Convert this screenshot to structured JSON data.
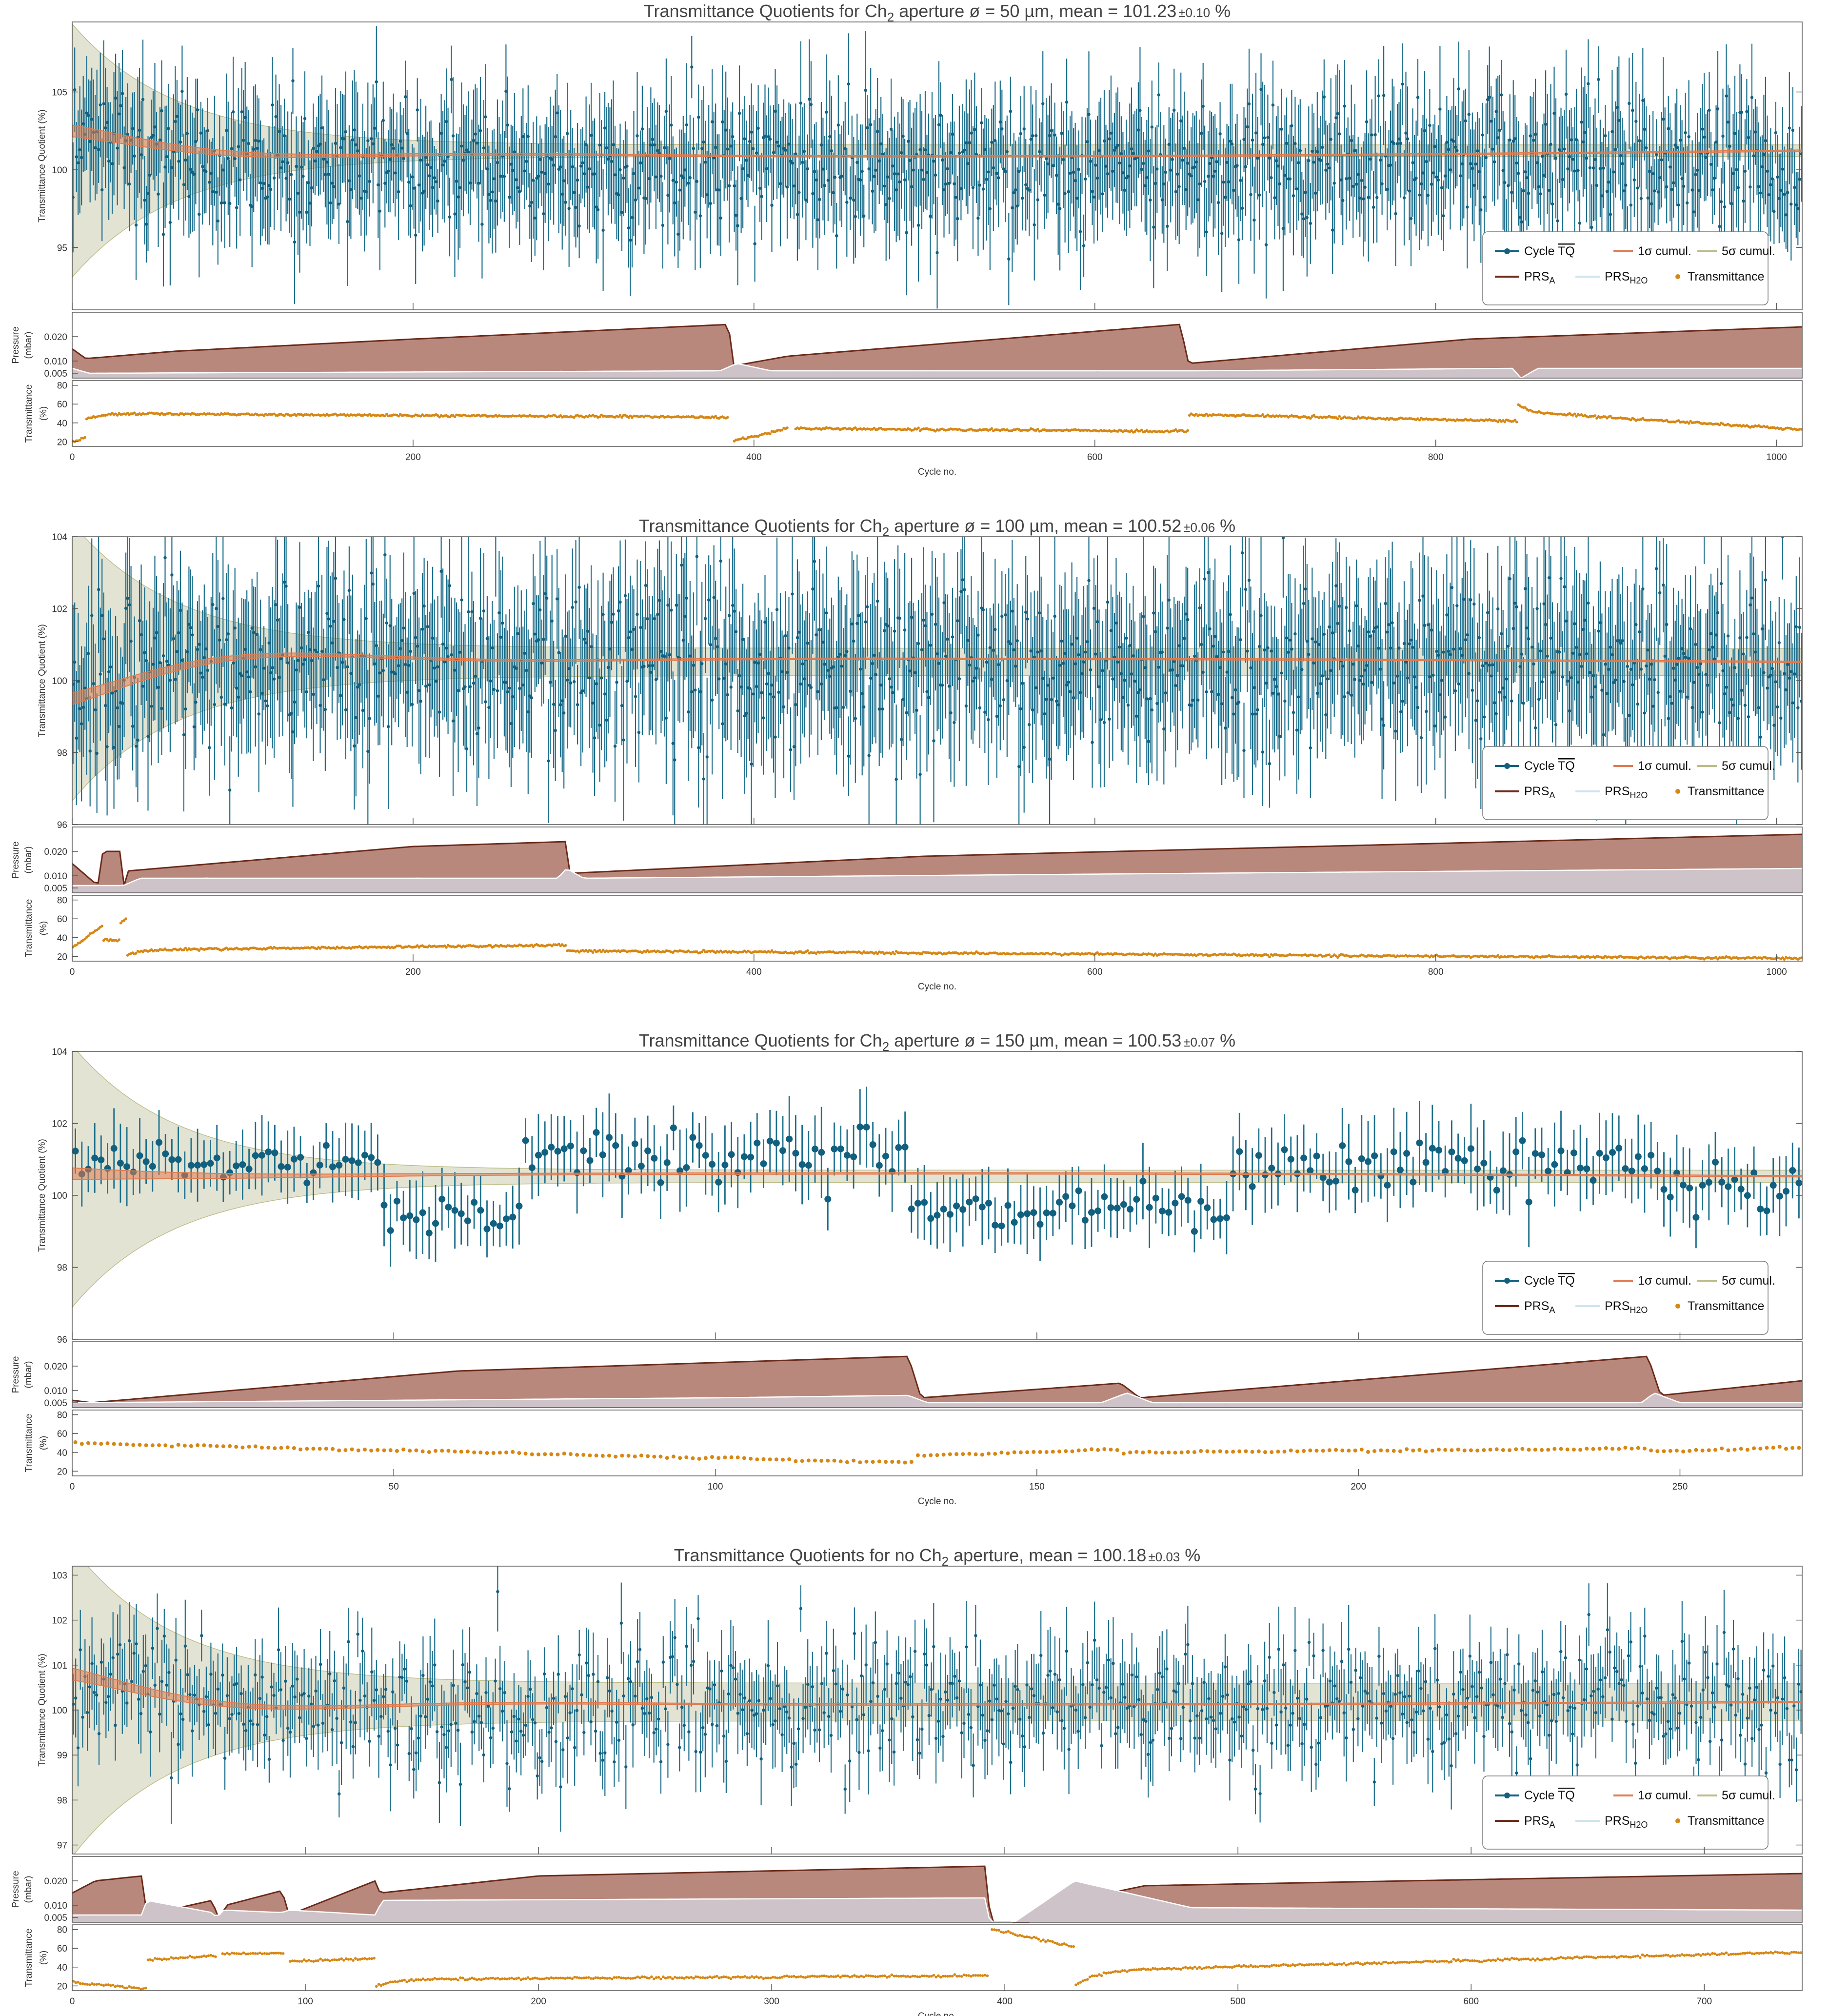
{
  "colors": {
    "tq": "#12607f",
    "tq_err": "#1d6f8c",
    "cum1": "#e07b4f",
    "cum5": "#bdbc88",
    "band5": "#dad9c6",
    "prs_a_line": "#6b2a1a",
    "prs_a_fill": "#b9887c",
    "prs_h2o_fill": "#cdc3c8",
    "prs_h2o_line": "#ffffff",
    "trans": "#d68714"
  },
  "legend": {
    "cycle_prefix": "Cycle",
    "cycle_symbol": "TQ",
    "cum1_label": "1σ cumul.",
    "cum5_label": "5σ cumul.",
    "prs_a_main": "PRS",
    "prs_a_sub": "A",
    "prs_h2o_main": "PRS",
    "prs_h2o_sub": "H2O",
    "trans_label": "Transmittance"
  },
  "axes": {
    "tq_ylabel": "Transmittance Quotient (%)",
    "prs_ylabel1": "Pressure",
    "prs_ylabel2": "(mbar)",
    "tr_ylabel1": "Transmittance",
    "tr_ylabel2": "(%)",
    "xlabel": "Cycle no."
  },
  "chart_data": [
    {
      "type": "scatter",
      "title_pre": "Transmittance Quotients for Ch",
      "title_sub": "2",
      "title_post": " aperture ø = 50 µm, mean = 101.23",
      "title_pm": "±0.10",
      "title_unit": " %",
      "n_cycles": 1015,
      "xlim": [
        0,
        1015
      ],
      "xticks": [
        0,
        200,
        400,
        600,
        800,
        1000
      ],
      "tq": {
        "ylim": [
          91,
          109.5
        ],
        "yticks": [
          95,
          100,
          105
        ],
        "mean": 101.23,
        "pattern": "dense-noisy",
        "segments": [
          {
            "from": 0,
            "to": 1015,
            "mean": 100.4,
            "spread": 2.2,
            "err": 3.6
          }
        ],
        "cum_start": 102.5,
        "cum_dip": 100.0,
        "band5_start": 109,
        "band5_end": 101.6
      },
      "pressure": {
        "ylim": [
          0.003,
          0.03
        ],
        "yticks": [
          0.005,
          0.01,
          0.02
        ],
        "prs_a": [
          [
            0,
            0.015
          ],
          [
            8,
            0.011
          ],
          [
            60,
            0.014
          ],
          [
            200,
            0.019
          ],
          [
            385,
            0.025
          ],
          [
            388,
            0.008
          ],
          [
            420,
            0.012
          ],
          [
            650,
            0.025
          ],
          [
            655,
            0.009
          ],
          [
            820,
            0.019
          ],
          [
            1015,
            0.024
          ]
        ],
        "prs_h2o": [
          [
            0,
            0.007
          ],
          [
            10,
            0.005
          ],
          [
            380,
            0.006
          ],
          [
            390,
            0.009
          ],
          [
            410,
            0.006
          ],
          [
            650,
            0.006
          ],
          [
            660,
            0.006
          ],
          [
            845,
            0.007
          ],
          [
            850,
            0.003
          ],
          [
            860,
            0.007
          ],
          [
            1015,
            0.007
          ]
        ]
      },
      "transmittance": {
        "ylim": [
          15,
          85
        ],
        "yticks": [
          20,
          40,
          60,
          80
        ],
        "segments": [
          {
            "from": 0,
            "to": 8,
            "start": 20,
            "end": 24
          },
          {
            "from": 8,
            "to": 385,
            "start": 44,
            "end": 40,
            "rise": 6
          },
          {
            "from": 388,
            "to": 420,
            "start": 21,
            "end": 34
          },
          {
            "from": 424,
            "to": 655,
            "start": 34,
            "end": 31
          },
          {
            "from": 655,
            "to": 848,
            "start": 49,
            "end": 42
          },
          {
            "from": 848,
            "to": 1015,
            "start": 60,
            "end": 41,
            "drop": 8
          }
        ]
      }
    },
    {
      "type": "scatter",
      "title_pre": "Transmittance Quotients for Ch",
      "title_sub": "2",
      "title_post": " aperture ø = 100 µm, mean = 100.52",
      "title_pm": "±0.06",
      "title_unit": " %",
      "n_cycles": 1015,
      "xlim": [
        0,
        1015
      ],
      "xticks": [
        0,
        200,
        400,
        600,
        800,
        1000
      ],
      "tq": {
        "ylim": [
          96,
          104
        ],
        "yticks": [
          96,
          98,
          100,
          102,
          104
        ],
        "mean": 100.52,
        "pattern": "dense-noisy",
        "segments": [
          {
            "from": 0,
            "to": 1015,
            "mean": 100.5,
            "spread": 1.3,
            "err": 2.0
          }
        ],
        "cum_start": 99.5,
        "cum_dip": 100.8,
        "band5_start": 104,
        "band5_end": 100.9
      },
      "pressure": {
        "ylim": [
          0.003,
          0.03
        ],
        "yticks": [
          0.005,
          0.01,
          0.02
        ],
        "prs_a": [
          [
            0,
            0.015
          ],
          [
            15,
            0.006
          ],
          [
            18,
            0.02
          ],
          [
            28,
            0.02
          ],
          [
            30,
            0.005
          ],
          [
            33,
            0.012
          ],
          [
            200,
            0.022
          ],
          [
            290,
            0.024
          ],
          [
            292,
            0.011
          ],
          [
            500,
            0.018
          ],
          [
            1015,
            0.027
          ]
        ],
        "prs_h2o": [
          [
            0,
            0.006
          ],
          [
            30,
            0.006
          ],
          [
            40,
            0.009
          ],
          [
            285,
            0.009
          ],
          [
            290,
            0.013
          ],
          [
            300,
            0.009
          ],
          [
            1015,
            0.013
          ]
        ]
      },
      "transmittance": {
        "ylim": [
          15,
          85
        ],
        "yticks": [
          20,
          40,
          60,
          80
        ],
        "segments": [
          {
            "from": 0,
            "to": 18,
            "start": 30,
            "end": 52
          },
          {
            "from": 18,
            "to": 28,
            "start": 38,
            "end": 37
          },
          {
            "from": 28,
            "to": 32,
            "start": 55,
            "end": 60
          },
          {
            "from": 32,
            "to": 290,
            "start": 22,
            "end": 27,
            "rise": 5
          },
          {
            "from": 290,
            "to": 1015,
            "start": 26,
            "end": 18
          }
        ]
      }
    },
    {
      "type": "scatter",
      "title_pre": "Transmittance Quotients for Ch",
      "title_sub": "2",
      "title_post": " aperture ø = 150 µm, mean = 100.53",
      "title_pm": "±0.07",
      "title_unit": " %",
      "n_cycles": 269,
      "xlim": [
        0,
        269
      ],
      "xticks": [
        0,
        50,
        100,
        150,
        200,
        250
      ],
      "tq": {
        "ylim": [
          96,
          104
        ],
        "yticks": [
          96,
          98,
          100,
          102,
          104
        ],
        "mean": 100.53,
        "pattern": "sparse-blocks",
        "segments": [
          {
            "from": 0,
            "to": 48,
            "mean": 100.9,
            "spread": 0.4,
            "err": 1.0
          },
          {
            "from": 48,
            "to": 70,
            "mean": 99.4,
            "spread": 0.4,
            "err": 1.0
          },
          {
            "from": 70,
            "to": 130,
            "mean": 101.1,
            "spread": 0.6,
            "err": 1.1
          },
          {
            "from": 130,
            "to": 162,
            "mean": 99.6,
            "spread": 0.5,
            "err": 1.0
          },
          {
            "from": 162,
            "to": 180,
            "mean": 99.7,
            "spread": 0.6,
            "err": 1.0
          },
          {
            "from": 180,
            "to": 245,
            "mean": 100.8,
            "spread": 0.7,
            "err": 1.1
          },
          {
            "from": 245,
            "to": 269,
            "mean": 100.2,
            "spread": 0.6,
            "err": 1.0
          }
        ],
        "cum_start": 100.6,
        "cum_dip": 100.8,
        "band5_start": 104,
        "band5_end": 100.7
      },
      "pressure": {
        "ylim": [
          0.003,
          0.03
        ],
        "yticks": [
          0.005,
          0.01,
          0.02
        ],
        "prs_a": [
          [
            0,
            0.006
          ],
          [
            3,
            0.005
          ],
          [
            60,
            0.018
          ],
          [
            130,
            0.024
          ],
          [
            132,
            0.007
          ],
          [
            163,
            0.013
          ],
          [
            166,
            0.007
          ],
          [
            245,
            0.024
          ],
          [
            247,
            0.008
          ],
          [
            269,
            0.014
          ]
        ],
        "prs_h2o": [
          [
            0,
            0.005
          ],
          [
            100,
            0.007
          ],
          [
            130,
            0.008
          ],
          [
            133,
            0.005
          ],
          [
            160,
            0.005
          ],
          [
            164,
            0.009
          ],
          [
            168,
            0.005
          ],
          [
            244,
            0.005
          ],
          [
            246,
            0.009
          ],
          [
            250,
            0.005
          ],
          [
            269,
            0.005
          ]
        ]
      },
      "transmittance": {
        "ylim": [
          15,
          85
        ],
        "yticks": [
          20,
          40,
          60,
          80
        ],
        "segments": [
          {
            "from": 0,
            "to": 131,
            "start": 50,
            "end": 29
          },
          {
            "from": 131,
            "to": 163,
            "start": 37,
            "end": 43
          },
          {
            "from": 163,
            "to": 246,
            "start": 40,
            "end": 44
          },
          {
            "from": 246,
            "to": 269,
            "start": 41,
            "end": 45
          }
        ]
      }
    },
    {
      "type": "scatter",
      "title_pre": "Transmittance Quotients for no Ch",
      "title_sub": "2",
      "title_post": " aperture, mean = 100.18",
      "title_pm": "±0.03",
      "title_unit": " %",
      "n_cycles": 742,
      "xlim": [
        0,
        742
      ],
      "xticks": [
        0,
        100,
        200,
        300,
        400,
        500,
        600,
        700
      ],
      "tq": {
        "ylim": [
          96.8,
          103.2
        ],
        "yticks": [
          97,
          98,
          99,
          100,
          101,
          102,
          103
        ],
        "mean": 100.18,
        "pattern": "dense-noisy",
        "segments": [
          {
            "from": 0,
            "to": 742,
            "mean": 100.1,
            "spread": 0.8,
            "err": 0.9
          }
        ],
        "cum_start": 100.8,
        "cum_dip": 100.0,
        "band5_start": 103.2,
        "band5_end": 100.6
      },
      "pressure": {
        "ylim": [
          0.003,
          0.03
        ],
        "yticks": [
          0.005,
          0.01,
          0.02
        ],
        "prs_a": [
          [
            0,
            0.015
          ],
          [
            10,
            0.02
          ],
          [
            30,
            0.022
          ],
          [
            32,
            0.006
          ],
          [
            60,
            0.012
          ],
          [
            63,
            0.004
          ],
          [
            66,
            0.01
          ],
          [
            90,
            0.016
          ],
          [
            93,
            0.006
          ],
          [
            130,
            0.02
          ],
          [
            132,
            0.015
          ],
          [
            200,
            0.022
          ],
          [
            392,
            0.026
          ],
          [
            394,
            0.0
          ],
          [
            404,
            0.0
          ],
          [
            430,
            0.012
          ],
          [
            460,
            0.018
          ],
          [
            742,
            0.023
          ]
        ],
        "prs_h2o": [
          [
            0,
            0.006
          ],
          [
            30,
            0.006
          ],
          [
            32,
            0.012
          ],
          [
            60,
            0.007
          ],
          [
            62,
            0.005
          ],
          [
            65,
            0.008
          ],
          [
            90,
            0.007
          ],
          [
            93,
            0.008
          ],
          [
            130,
            0.006
          ],
          [
            133,
            0.012
          ],
          [
            392,
            0.013
          ],
          [
            394,
            0.0
          ],
          [
            404,
            0.003
          ],
          [
            430,
            0.02
          ],
          [
            480,
            0.009
          ],
          [
            742,
            0.008
          ]
        ]
      },
      "transmittance": {
        "ylim": [
          15,
          85
        ],
        "yticks": [
          20,
          40,
          60,
          80
        ],
        "segments": [
          {
            "from": 0,
            "to": 32,
            "start": 24,
            "end": 17
          },
          {
            "from": 32,
            "to": 62,
            "start": 48,
            "end": 52
          },
          {
            "from": 64,
            "to": 91,
            "start": 54,
            "end": 55
          },
          {
            "from": 93,
            "to": 130,
            "start": 46,
            "end": 49
          },
          {
            "from": 130,
            "to": 393,
            "start": 20,
            "end": 24,
            "rise": 7
          },
          {
            "from": 394,
            "to": 430,
            "start": 80,
            "end": 62
          },
          {
            "from": 430,
            "to": 742,
            "start": 20,
            "end": 40,
            "rise": 16
          }
        ]
      }
    }
  ]
}
